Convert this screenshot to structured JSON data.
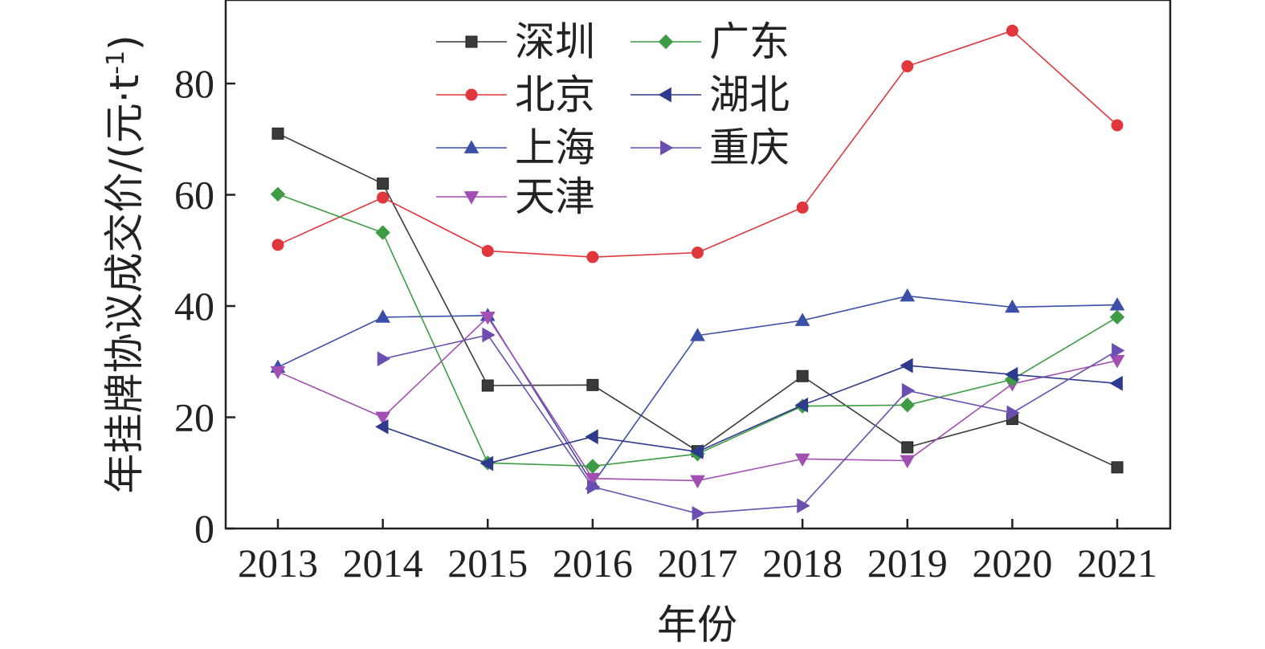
{
  "chart_data": {
    "type": "line",
    "title": "",
    "xlabel": "年份",
    "ylabel": "年挂牌协议成交价/(元·t",
    "ylabel_sup": "-1",
    "ylabel_close": ")",
    "categories": [
      "2013",
      "2014",
      "2015",
      "2016",
      "2017",
      "2018",
      "2019",
      "2020",
      "2021"
    ],
    "xlim": [
      2013,
      2021
    ],
    "ylim": [
      0,
      92
    ],
    "yticks": [
      0,
      20,
      40,
      60,
      80
    ],
    "grid": false,
    "legend_position": "top-center",
    "series": [
      {
        "name": "深圳",
        "color": "#3a3a3a",
        "marker": "square",
        "values": [
          71,
          62,
          25.7,
          25.8,
          13.9,
          27.4,
          14.6,
          19.7,
          11
        ]
      },
      {
        "name": "北京",
        "color": "#e0373c",
        "marker": "circle",
        "values": [
          51,
          59.5,
          49.9,
          48.8,
          49.6,
          57.7,
          83.1,
          89.5,
          72.5
        ]
      },
      {
        "name": "上海",
        "color": "#3b4fa8",
        "marker": "triangle-up",
        "values": [
          29,
          38,
          38.3,
          8,
          34.7,
          37.4,
          41.8,
          39.8,
          40.2
        ]
      },
      {
        "name": "天津",
        "color": "#a24fb3",
        "marker": "triangle-down",
        "values": [
          28.2,
          20,
          38,
          9,
          8.6,
          12.5,
          12.2,
          26,
          30.2
        ]
      },
      {
        "name": "广东",
        "color": "#3e9c45",
        "marker": "diamond",
        "values": [
          60.1,
          53.2,
          11.8,
          11.2,
          13.4,
          22,
          22.2,
          26.8,
          38
        ]
      },
      {
        "name": "湖北",
        "color": "#2e3a8c",
        "marker": "triangle-left",
        "values": [
          null,
          18.3,
          11.7,
          16.5,
          13.8,
          22.2,
          29.3,
          27.7,
          26.1
        ]
      },
      {
        "name": "重庆",
        "color": "#6a4fb0",
        "marker": "triangle-right",
        "values": [
          null,
          30.5,
          34.8,
          7.5,
          2.7,
          4.1,
          24.8,
          20.8,
          32
        ]
      }
    ]
  }
}
